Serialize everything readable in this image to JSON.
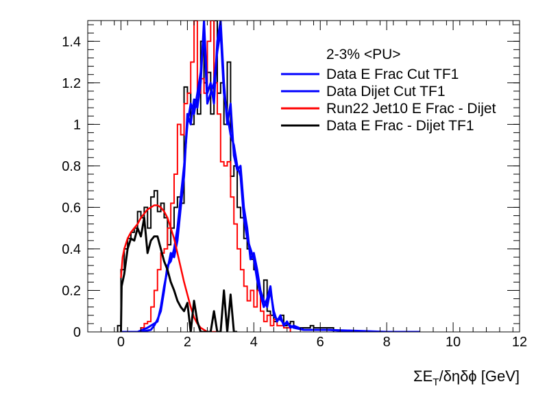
{
  "chart_data": {
    "type": "line",
    "title": "",
    "xlabel": "ΣE",
    "xlabel_sub": "T",
    "xlabel_rest": "/δηδϕ [GeV]",
    "ylabel": "",
    "xlim": [
      -1,
      12
    ],
    "ylim": [
      0,
      1.5
    ],
    "xticks": [
      0,
      2,
      4,
      6,
      8,
      10,
      12
    ],
    "yticks": [
      0,
      0.2,
      0.4,
      0.6,
      0.8,
      1,
      1.2,
      1.4
    ],
    "xtick_labels": [
      "0",
      "2",
      "4",
      "6",
      "8",
      "10",
      "12"
    ],
    "ytick_labels": [
      "0",
      "0.2",
      "0.4",
      "0.6",
      "0.8",
      "1",
      "1.2",
      "1.4"
    ],
    "grid": false,
    "legend_header": "2-3% <PU>",
    "legend_placement": "top-right",
    "series": [
      {
        "name": "Data E Frac Cut TF1",
        "color": "#0000ff",
        "style": "line",
        "x": [
          0,
          0.5,
          0.8,
          1.0,
          1.1,
          1.2,
          1.3,
          1.4,
          1.5,
          1.6,
          1.7,
          1.8,
          1.9,
          2.0,
          2.1,
          2.2,
          2.3,
          2.4,
          2.5,
          2.6,
          2.7,
          2.8,
          2.9,
          3.0,
          3.1,
          3.2,
          3.3,
          3.4,
          3.5,
          3.6,
          3.7,
          3.8,
          3.9,
          4.0,
          4.1,
          4.2,
          4.3,
          4.4,
          4.5,
          4.6,
          4.7,
          4.8,
          4.9,
          5.0,
          5.1,
          5.2,
          5.5,
          6.0,
          6.3,
          7.0,
          9.0
        ],
        "y": [
          0,
          0.0,
          0.02,
          0.04,
          0.05,
          0.12,
          0.22,
          0.3,
          0.38,
          0.36,
          0.44,
          0.6,
          0.75,
          1.05,
          1.0,
          1.12,
          1.08,
          1.2,
          1.5,
          1.15,
          1.2,
          1.1,
          1.4,
          1.5,
          1.2,
          1.0,
          1.1,
          0.85,
          0.78,
          0.8,
          0.6,
          0.5,
          0.35,
          0.38,
          0.3,
          0.2,
          0.15,
          0.12,
          0.2,
          0.1,
          0.05,
          0.08,
          0.03,
          0.05,
          0.02,
          0.03,
          0.01,
          0.01,
          0.01,
          0.0,
          0.0
        ]
      },
      {
        "name": "Data Dijet Cut TF1",
        "color": "#0000ff",
        "style": "line",
        "x": [
          0,
          0.6,
          0.9,
          1.0,
          1.1,
          1.2,
          1.3,
          1.4,
          1.5,
          1.6,
          1.7,
          1.8,
          1.9,
          2.0,
          2.1,
          2.2,
          2.3,
          2.4,
          2.5,
          2.6,
          2.7,
          2.8,
          2.9,
          3.0,
          3.1,
          3.2,
          3.3,
          3.4,
          3.5,
          3.6,
          3.7,
          3.8,
          3.9,
          4.0,
          4.1,
          4.2,
          4.3,
          4.4,
          4.5,
          4.6,
          4.7,
          4.8,
          4.9,
          5.0,
          5.2,
          5.5,
          6.2,
          8.0
        ],
        "y": [
          0,
          0.0,
          0.01,
          0.03,
          0.06,
          0.1,
          0.2,
          0.32,
          0.34,
          0.4,
          0.5,
          0.65,
          0.8,
          1.0,
          1.1,
          1.05,
          1.15,
          1.25,
          1.45,
          1.1,
          1.15,
          1.2,
          1.35,
          1.45,
          1.15,
          1.05,
          0.95,
          0.9,
          0.8,
          0.75,
          0.55,
          0.45,
          0.4,
          0.35,
          0.25,
          0.18,
          0.12,
          0.16,
          0.22,
          0.08,
          0.06,
          0.06,
          0.04,
          0.04,
          0.02,
          0.01,
          0.01,
          0.0
        ]
      },
      {
        "name": "Run22 Jet10 E Frac - Dijet",
        "color": "#ff0000",
        "style": "smooth",
        "x": [
          0,
          0.05,
          0.1,
          0.2,
          0.3,
          0.4,
          0.5,
          0.6,
          0.7,
          0.8,
          0.9,
          1.0,
          1.1,
          1.2,
          1.3,
          1.4,
          1.5,
          1.6,
          1.7,
          1.8,
          1.9,
          2.0,
          2.1,
          2.2,
          2.3,
          2.4,
          2.5,
          2.6,
          2.8,
          3.0
        ],
        "y": [
          0.26,
          0.36,
          0.4,
          0.45,
          0.48,
          0.5,
          0.52,
          0.55,
          0.57,
          0.59,
          0.6,
          0.61,
          0.61,
          0.6,
          0.58,
          0.55,
          0.5,
          0.45,
          0.38,
          0.31,
          0.24,
          0.18,
          0.12,
          0.07,
          0.04,
          0.02,
          0.01,
          0.0,
          0.0,
          0.0
        ]
      },
      {
        "name": "Data E Frac - Dijet TF1",
        "color": "#000000",
        "style": "line",
        "x": [
          0,
          0.02,
          0.1,
          0.2,
          0.3,
          0.4,
          0.5,
          0.6,
          0.7,
          0.8,
          0.9,
          1.0,
          1.1,
          1.2,
          1.3,
          1.4,
          1.5,
          1.6,
          1.7,
          1.8,
          1.9,
          2.0,
          2.1,
          2.2,
          2.3,
          2.4,
          2.5,
          2.6,
          2.7,
          2.8,
          2.9,
          3.0,
          3.1,
          3.2,
          3.3,
          3.4,
          3.5
        ],
        "y": [
          0.0,
          0.22,
          0.28,
          0.4,
          0.45,
          0.44,
          0.5,
          0.46,
          0.55,
          0.38,
          0.44,
          0.46,
          0.46,
          0.4,
          0.34,
          0.3,
          0.24,
          0.2,
          0.15,
          0.12,
          0.1,
          0.14,
          0.0,
          0.15,
          0.05,
          0.0,
          0.0,
          0.0,
          0.0,
          0.1,
          0.0,
          0.0,
          0.2,
          0.0,
          0.18,
          0.0,
          0.0
        ]
      }
    ],
    "histograms": [
      {
        "color": "#000000",
        "bin_width": 0.1,
        "x_start": -0.1,
        "values": [
          0.03,
          0.3,
          0.4,
          0.45,
          0.48,
          0.5,
          0.58,
          0.55,
          0.6,
          0.5,
          0.65,
          0.68,
          0.58,
          0.62,
          0.55,
          0.42,
          0.5,
          0.6,
          0.65,
          0.62,
          1.18,
          1.15,
          1.0,
          1.12,
          1.05,
          1.4,
          1.2,
          1.25,
          1.05,
          1.5,
          1.15,
          1.2,
          1.0,
          1.3,
          0.75,
          0.8,
          0.6,
          0.55,
          0.45,
          0.4,
          0.35,
          0.3,
          0.2,
          0.15,
          0.25,
          0.1,
          0.08,
          0.05,
          0.06,
          0.08,
          0.03,
          0.04,
          0.05,
          0.02,
          0.02,
          0.02,
          0.02,
          0.02,
          0.03,
          0.02,
          0.02,
          0.02,
          0.02,
          0.02,
          0.02
        ]
      },
      {
        "color": "#ff0000",
        "bin_width": 0.1,
        "x_start": 0.3,
        "values": [
          0.0,
          0.0,
          0.0,
          0.02,
          0.04,
          0.05,
          0.12,
          0.2,
          0.3,
          0.38,
          0.4,
          0.5,
          0.62,
          0.76,
          1.0,
          0.95,
          1.1,
          1.15,
          1.3,
          1.5,
          1.15,
          1.22,
          1.15,
          1.4,
          1.5,
          1.2,
          1.05,
          0.82,
          0.8,
          0.82,
          0.65,
          0.52,
          0.4,
          0.3,
          0.22,
          0.15,
          0.2,
          0.12,
          0.2,
          0.1,
          0.05,
          0.08,
          0.03,
          0.06,
          0.03,
          0.03,
          0.02,
          0.02
        ]
      }
    ]
  }
}
